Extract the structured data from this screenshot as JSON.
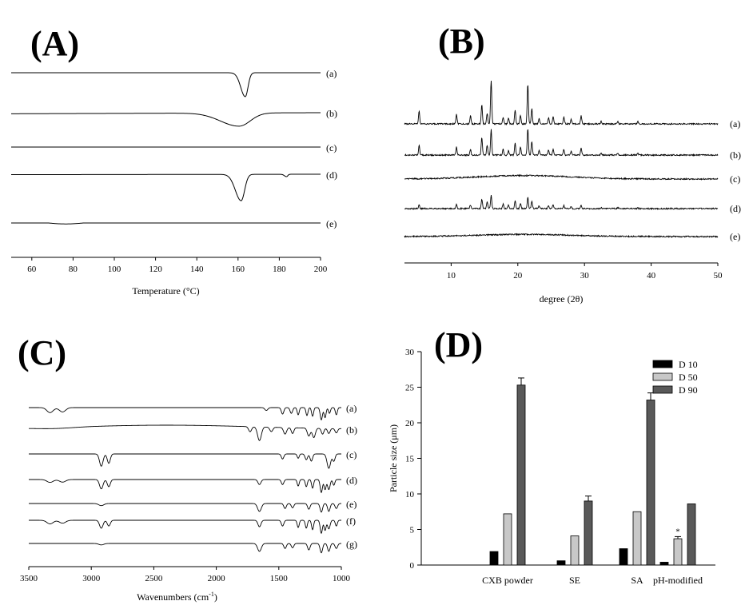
{
  "panels": {
    "A": "(A)",
    "B": "(B)",
    "C": "(C)",
    "D": "(D)"
  },
  "chart_data": [
    {
      "panel": "(A)",
      "type": "line",
      "xlabel": "Temperature (°C)",
      "xlim": [
        50,
        200
      ],
      "xticks": [
        60,
        80,
        100,
        120,
        140,
        160,
        180,
        200
      ],
      "y_axis_shown": false,
      "series": [
        {
          "name": "(a)",
          "baseline": 0,
          "peaks": [
            {
              "x": 163.5,
              "depth": 1.0,
              "width": 2.2
            }
          ],
          "drift": 0
        },
        {
          "name": "(b)",
          "baseline": 0,
          "peaks": [
            {
              "x": 160.5,
              "depth": 0.75,
              "width": 9
            }
          ],
          "drift": 0.12
        },
        {
          "name": "(c)",
          "baseline": 0,
          "peaks": [],
          "drift": 0
        },
        {
          "name": "(d)",
          "baseline": 0,
          "peaks": [
            {
              "x": 161.5,
              "depth": 1.0,
              "width": 2.8
            },
            {
              "x": 183.5,
              "depth": 0.12,
              "width": 1
            }
          ],
          "drift": 0.05
        },
        {
          "name": "(e)",
          "baseline": 0,
          "peaks": [],
          "drift": 0
        }
      ]
    },
    {
      "panel": "(B)",
      "type": "line",
      "xlabel": "degree (2θ)",
      "xlim": [
        3,
        50
      ],
      "xticks": [
        10,
        20,
        30,
        40,
        50
      ],
      "y_axis_shown": false,
      "peak_positions": [
        5.2,
        10.8,
        12.9,
        14.6,
        15.4,
        16.0,
        17.8,
        18.6,
        19.6,
        20.4,
        21.5,
        22.1,
        23.2,
        24.6,
        25.3,
        26.9,
        28.0,
        29.5,
        32.5,
        35.0,
        38.0
      ],
      "series": [
        {
          "name": "(a)",
          "pattern": "crystalline",
          "peak_heights": [
            0.28,
            0.22,
            0.18,
            0.45,
            0.25,
            1.0,
            0.15,
            0.12,
            0.32,
            0.2,
            0.92,
            0.35,
            0.12,
            0.14,
            0.16,
            0.15,
            0.1,
            0.18,
            0.06,
            0.05,
            0.05
          ]
        },
        {
          "name": "(b)",
          "pattern": "crystalline",
          "peak_heights": [
            0.22,
            0.18,
            0.14,
            0.4,
            0.22,
            0.58,
            0.13,
            0.1,
            0.27,
            0.18,
            0.6,
            0.3,
            0.1,
            0.12,
            0.13,
            0.12,
            0.08,
            0.15,
            0.05,
            0.04,
            0.04
          ]
        },
        {
          "name": "(c)",
          "pattern": "amorphous",
          "halo_center": 21,
          "halo_height": 0.08
        },
        {
          "name": "(d)",
          "pattern": "crystalline",
          "peak_heights": [
            0.08,
            0.09,
            0.08,
            0.22,
            0.16,
            0.3,
            0.1,
            0.08,
            0.17,
            0.12,
            0.26,
            0.16,
            0.06,
            0.07,
            0.08,
            0.07,
            0.04,
            0.07,
            0.02,
            0.02,
            0.02
          ]
        },
        {
          "name": "(e)",
          "pattern": "amorphous",
          "halo_center": 21,
          "halo_height": 0.05
        }
      ]
    },
    {
      "panel": "(C)",
      "type": "line",
      "xlabel": "Wavenumbers (cm",
      "xlabel_sup": "-1",
      "xlabel_end": ")",
      "xlim": [
        3500,
        1000
      ],
      "xticks": [
        3500,
        3000,
        2500,
        2000,
        1500,
        1000
      ],
      "y_axis_shown": false,
      "series": [
        {
          "name": "(a)",
          "bands": [
            {
              "x": 3330,
              "d": 0.35,
              "w": 25
            },
            {
              "x": 3230,
              "d": 0.3,
              "w": 25
            },
            {
              "x": 1600,
              "d": 0.2,
              "w": 12
            },
            {
              "x": 1470,
              "d": 0.45,
              "w": 10
            },
            {
              "x": 1400,
              "d": 0.4,
              "w": 10
            },
            {
              "x": 1345,
              "d": 0.5,
              "w": 8
            },
            {
              "x": 1275,
              "d": 0.55,
              "w": 8
            },
            {
              "x": 1230,
              "d": 0.6,
              "w": 8
            },
            {
              "x": 1160,
              "d": 0.85,
              "w": 9
            },
            {
              "x": 1130,
              "d": 0.7,
              "w": 8
            },
            {
              "x": 1095,
              "d": 0.4,
              "w": 8
            },
            {
              "x": 1040,
              "d": 0.5,
              "w": 8
            }
          ]
        },
        {
          "name": "(b)",
          "bands": [
            {
              "x": 3300,
              "d": 0.08,
              "w": 150
            },
            {
              "x": 1730,
              "d": 0.35,
              "w": 12
            },
            {
              "x": 1655,
              "d": 0.95,
              "w": 15
            },
            {
              "x": 1560,
              "d": 0.3,
              "w": 12
            },
            {
              "x": 1450,
              "d": 0.45,
              "w": 12
            },
            {
              "x": 1390,
              "d": 0.4,
              "w": 10
            },
            {
              "x": 1260,
              "d": 0.55,
              "w": 12
            },
            {
              "x": 1220,
              "d": 0.65,
              "w": 12
            },
            {
              "x": 1150,
              "d": 0.4,
              "w": 10
            },
            {
              "x": 1100,
              "d": 0.35,
              "w": 10
            },
            {
              "x": 1040,
              "d": 0.3,
              "w": 10
            }
          ]
        },
        {
          "name": "(c)",
          "bands": [
            {
              "x": 2920,
              "d": 0.85,
              "w": 14
            },
            {
              "x": 2860,
              "d": 0.65,
              "w": 12
            },
            {
              "x": 1470,
              "d": 0.35,
              "w": 10
            },
            {
              "x": 1345,
              "d": 0.3,
              "w": 8
            },
            {
              "x": 1280,
              "d": 0.4,
              "w": 10
            },
            {
              "x": 1240,
              "d": 0.5,
              "w": 10
            },
            {
              "x": 1100,
              "d": 1.0,
              "w": 14
            },
            {
              "x": 1060,
              "d": 0.5,
              "w": 10
            }
          ]
        },
        {
          "name": "(d)",
          "bands": [
            {
              "x": 3330,
              "d": 0.2,
              "w": 25
            },
            {
              "x": 3230,
              "d": 0.18,
              "w": 25
            },
            {
              "x": 2920,
              "d": 0.65,
              "w": 14
            },
            {
              "x": 2860,
              "d": 0.5,
              "w": 12
            },
            {
              "x": 1655,
              "d": 0.35,
              "w": 12
            },
            {
              "x": 1470,
              "d": 0.35,
              "w": 10
            },
            {
              "x": 1345,
              "d": 0.45,
              "w": 8
            },
            {
              "x": 1280,
              "d": 0.5,
              "w": 8
            },
            {
              "x": 1230,
              "d": 0.6,
              "w": 8
            },
            {
              "x": 1160,
              "d": 0.9,
              "w": 9
            },
            {
              "x": 1130,
              "d": 0.7,
              "w": 8
            },
            {
              "x": 1100,
              "d": 0.7,
              "w": 10
            },
            {
              "x": 1060,
              "d": 0.4,
              "w": 8
            }
          ]
        },
        {
          "name": "(e)",
          "bands": [
            {
              "x": 2920,
              "d": 0.15,
              "w": 20
            },
            {
              "x": 1655,
              "d": 0.55,
              "w": 15
            },
            {
              "x": 1450,
              "d": 0.35,
              "w": 10
            },
            {
              "x": 1390,
              "d": 0.3,
              "w": 10
            },
            {
              "x": 1260,
              "d": 0.4,
              "w": 10
            },
            {
              "x": 1160,
              "d": 0.6,
              "w": 10
            },
            {
              "x": 1100,
              "d": 0.55,
              "w": 10
            },
            {
              "x": 1040,
              "d": 0.35,
              "w": 10
            }
          ]
        },
        {
          "name": "(f)",
          "bands": [
            {
              "x": 3330,
              "d": 0.25,
              "w": 25
            },
            {
              "x": 3230,
              "d": 0.2,
              "w": 25
            },
            {
              "x": 2920,
              "d": 0.55,
              "w": 14
            },
            {
              "x": 2860,
              "d": 0.4,
              "w": 12
            },
            {
              "x": 1655,
              "d": 0.45,
              "w": 12
            },
            {
              "x": 1470,
              "d": 0.4,
              "w": 10
            },
            {
              "x": 1345,
              "d": 0.5,
              "w": 8
            },
            {
              "x": 1280,
              "d": 0.55,
              "w": 8
            },
            {
              "x": 1230,
              "d": 0.65,
              "w": 8
            },
            {
              "x": 1160,
              "d": 0.9,
              "w": 9
            },
            {
              "x": 1130,
              "d": 0.7,
              "w": 8
            },
            {
              "x": 1100,
              "d": 0.6,
              "w": 10
            },
            {
              "x": 1040,
              "d": 0.4,
              "w": 8
            }
          ]
        },
        {
          "name": "(g)",
          "bands": [
            {
              "x": 2920,
              "d": 0.1,
              "w": 20
            },
            {
              "x": 1655,
              "d": 0.55,
              "w": 15
            },
            {
              "x": 1450,
              "d": 0.35,
              "w": 10
            },
            {
              "x": 1390,
              "d": 0.3,
              "w": 10
            },
            {
              "x": 1260,
              "d": 0.45,
              "w": 10
            },
            {
              "x": 1160,
              "d": 0.65,
              "w": 10
            },
            {
              "x": 1100,
              "d": 0.55,
              "w": 10
            },
            {
              "x": 1040,
              "d": 0.35,
              "w": 10
            }
          ]
        }
      ]
    },
    {
      "panel": "(D)",
      "type": "bar",
      "ylabel": "Particle size (μm)",
      "ylim": [
        0,
        30
      ],
      "yticks": [
        0,
        5,
        10,
        15,
        20,
        25,
        30
      ],
      "categories": [
        "CXB powder",
        "SE",
        "SA",
        "pH-modified"
      ],
      "legend_position": "top-right",
      "series": [
        {
          "name": "D 10",
          "color": "#000000",
          "values": [
            1.9,
            0.6,
            2.3,
            0.4
          ],
          "errors": [
            0,
            0,
            0,
            0
          ]
        },
        {
          "name": "D 50",
          "color": "#c8c8c8",
          "values": [
            7.2,
            4.1,
            7.5,
            3.7
          ],
          "errors": [
            0,
            0,
            0,
            0.3
          ]
        },
        {
          "name": "D 90",
          "color": "#595959",
          "values": [
            25.3,
            9.0,
            23.2,
            8.6
          ],
          "errors": [
            1.0,
            0.7,
            1.0,
            0
          ]
        }
      ],
      "annotations": [
        {
          "category": "pH-modified",
          "series": "D 50",
          "text": "*"
        }
      ]
    }
  ]
}
